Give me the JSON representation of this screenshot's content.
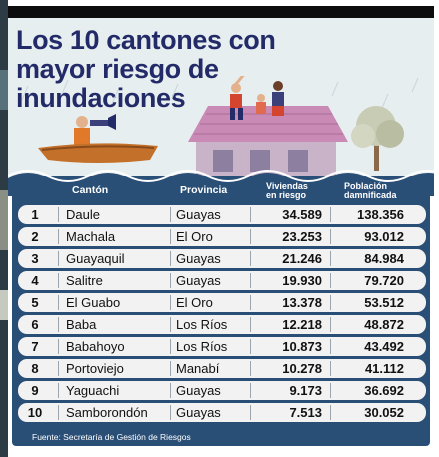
{
  "title": "Los 10 cantones con mayor riesgo de inundaciones",
  "columns": {
    "canton": "Cantón",
    "provincia": "Provincia",
    "viviendas_l1": "Viviendas",
    "viviendas_l2": "en riesgo",
    "poblacion_l1": "Población",
    "poblacion_l2": "damnificada"
  },
  "rows": [
    {
      "rank": "1",
      "canton": "Daule",
      "provincia": "Guayas",
      "viviendas": "34.589",
      "poblacion": "138.356"
    },
    {
      "rank": "2",
      "canton": "Machala",
      "provincia": "El Oro",
      "viviendas": "23.253",
      "poblacion": "93.012"
    },
    {
      "rank": "3",
      "canton": "Guayaquil",
      "provincia": "Guayas",
      "viviendas": "21.246",
      "poblacion": "84.984"
    },
    {
      "rank": "4",
      "canton": "Salitre",
      "provincia": "Guayas",
      "viviendas": "19.930",
      "poblacion": "79.720"
    },
    {
      "rank": "5",
      "canton": "El Guabo",
      "provincia": "El Oro",
      "viviendas": "13.378",
      "poblacion": "53.512"
    },
    {
      "rank": "6",
      "canton": "Baba",
      "provincia": "Los Ríos",
      "viviendas": "12.218",
      "poblacion": "48.872"
    },
    {
      "rank": "7",
      "canton": "Babahoyo",
      "provincia": "Los Ríos",
      "viviendas": "10.873",
      "poblacion": "43.492"
    },
    {
      "rank": "8",
      "canton": "Portoviejo",
      "provincia": "Manabí",
      "viviendas": "10.278",
      "poblacion": "41.112"
    },
    {
      "rank": "9",
      "canton": "Yaguachi",
      "provincia": "Guayas",
      "viviendas": "9.173",
      "poblacion": "36.692"
    },
    {
      "rank": "10",
      "canton": "Samborondón",
      "provincia": "Guayas",
      "viviendas": "7.513",
      "poblacion": "30.052"
    }
  ],
  "source": "Fuente: Secretaría de Gestión de Riesgos",
  "colors": {
    "title": "#232a68",
    "panel": "#2a4f77",
    "row": "#f2f2f2",
    "roof": "#c98ab5",
    "boat": "#c2702a"
  }
}
